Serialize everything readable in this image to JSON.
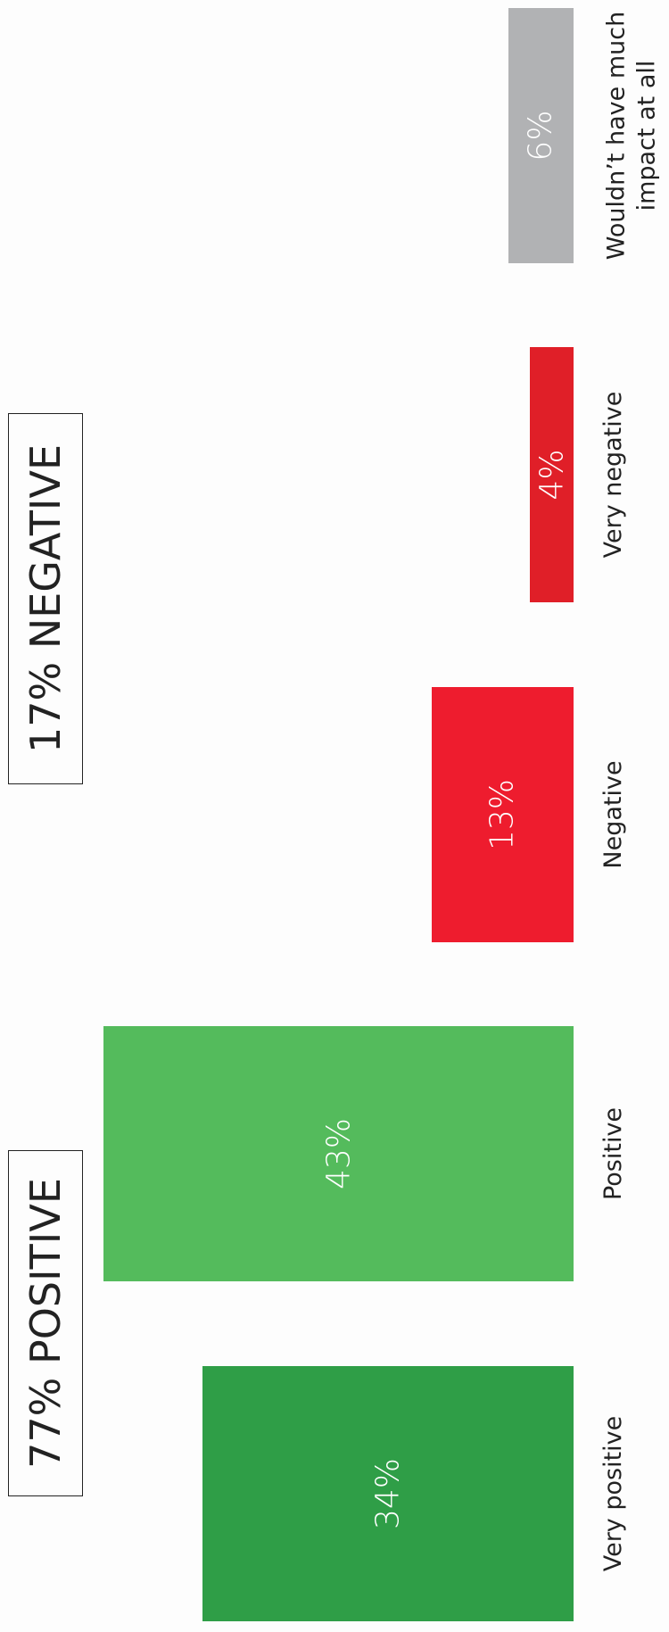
{
  "chart_data": {
    "type": "bar",
    "categories": [
      "Very positive",
      "Positive",
      "Negative",
      "Very negative",
      "Wouldn’t have much impact at all"
    ],
    "values": [
      34,
      43,
      13,
      4,
      6
    ],
    "value_labels": [
      "34%",
      "43%",
      "13%",
      "4%",
      "6%"
    ],
    "colors": [
      "#2f9e47",
      "#54bb5c",
      "#ee1c2e",
      "#e01f28",
      "#b1b2b4"
    ],
    "annotations": [
      "77% POSITIVE",
      "17% NEGATIVE"
    ]
  }
}
